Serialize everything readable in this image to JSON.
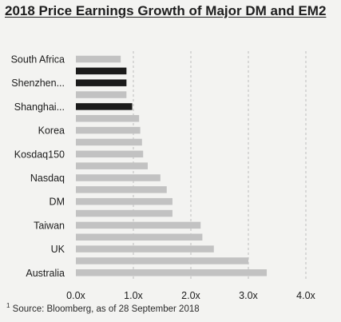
{
  "title": "2018 Price Earnings Growth of Major DM and EM2",
  "source_marker": "1",
  "source": "Source: Bloomberg, as of 28 September 2018",
  "colors": {
    "bar": "#c2c2c2",
    "highlight": "#1b1b1b",
    "grid": "#bdbdbd",
    "text": "#1c1c1c"
  },
  "chart_data": {
    "type": "bar",
    "orientation": "horizontal",
    "title": "2018 Price Earnings Growth of Major DM and EM2",
    "xlabel": "",
    "ylabel": "",
    "xlim": [
      0,
      4
    ],
    "xticks": [
      "0.0x",
      "1.0x",
      "2.0x",
      "3.0x",
      "4.0x"
    ],
    "grid": "vertical-dashed",
    "bars": [
      {
        "label": "South Africa",
        "value": 0.78,
        "highlight": false
      },
      {
        "label": "",
        "value": 0.88,
        "highlight": true
      },
      {
        "label": "Shenzhen...",
        "value": 0.88,
        "highlight": true
      },
      {
        "label": "",
        "value": 0.88,
        "highlight": false
      },
      {
        "label": "Shanghai...",
        "value": 0.98,
        "highlight": true
      },
      {
        "label": "",
        "value": 1.1,
        "highlight": false
      },
      {
        "label": "Korea",
        "value": 1.12,
        "highlight": false
      },
      {
        "label": "",
        "value": 1.15,
        "highlight": false
      },
      {
        "label": "Kosdaq150",
        "value": 1.17,
        "highlight": false
      },
      {
        "label": "",
        "value": 1.25,
        "highlight": false
      },
      {
        "label": "Nasdaq",
        "value": 1.47,
        "highlight": false
      },
      {
        "label": "",
        "value": 1.58,
        "highlight": false
      },
      {
        "label": "DM",
        "value": 1.68,
        "highlight": false
      },
      {
        "label": "",
        "value": 1.68,
        "highlight": false
      },
      {
        "label": "Taiwan",
        "value": 2.17,
        "highlight": false
      },
      {
        "label": "",
        "value": 2.2,
        "highlight": false
      },
      {
        "label": "UK",
        "value": 2.4,
        "highlight": false
      },
      {
        "label": "",
        "value": 3.0,
        "highlight": false
      },
      {
        "label": "Australia",
        "value": 3.32,
        "highlight": false
      }
    ]
  }
}
